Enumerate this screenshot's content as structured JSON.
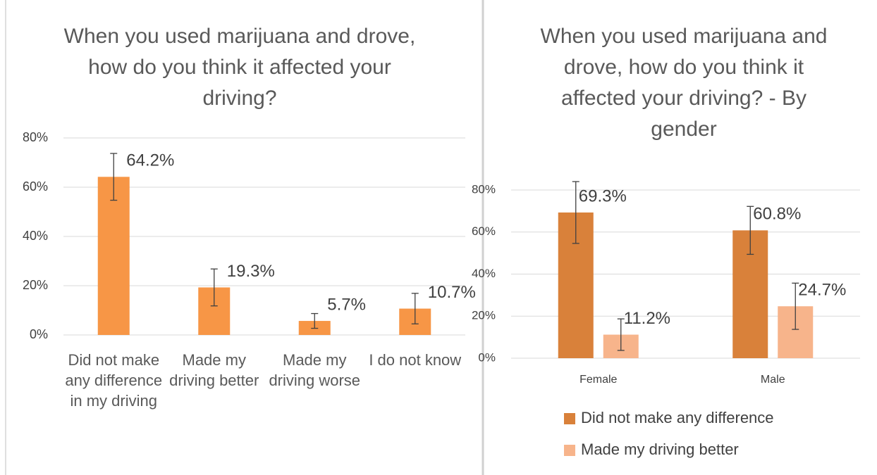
{
  "chart_data": [
    {
      "type": "bar",
      "title": "When you used marijuana and drove, how do you think it affected your driving?",
      "categories": [
        "Did not make any difference in my driving",
        "Made my driving better",
        "Made my driving worse",
        "I do not know"
      ],
      "series": [
        {
          "color": "#f79646",
          "values": [
            64.2,
            19.3,
            5.7,
            10.7
          ],
          "value_labels": [
            "64.2%",
            "19.3%",
            "5.7%",
            "10.7%"
          ],
          "errors": [
            9.5,
            7.5,
            3,
            6.2
          ]
        }
      ],
      "ylim": [
        0,
        80
      ],
      "yticks": [
        {
          "value": 0,
          "label": "0%"
        },
        {
          "value": 20,
          "label": "20%"
        },
        {
          "value": 40,
          "label": "40%"
        },
        {
          "value": 60,
          "label": "60%"
        },
        {
          "value": 80,
          "label": "80%"
        }
      ],
      "grid": true
    },
    {
      "type": "bar",
      "title": "When you used marijuana and drove, how do you think it affected your driving? - By gender",
      "categories": [
        "Female",
        "Male"
      ],
      "series": [
        {
          "name": "Did not make any difference",
          "color": "#d9813a",
          "values": [
            69.3,
            60.8
          ],
          "value_labels": [
            "69.3%",
            "60.8%"
          ],
          "errors": [
            14.7,
            11.4
          ]
        },
        {
          "name": "Made my driving better",
          "color": "#f7b48b",
          "values": [
            11.2,
            24.7
          ],
          "value_labels": [
            "11.2%",
            "24.7%"
          ],
          "errors": [
            7.5,
            11
          ]
        }
      ],
      "ylim": [
        0,
        80
      ],
      "yticks": [
        {
          "value": 0,
          "label": "0%"
        },
        {
          "value": 20,
          "label": "20%"
        },
        {
          "value": 40,
          "label": "40%"
        },
        {
          "value": 60,
          "label": "60%"
        },
        {
          "value": 80,
          "label": "80%"
        }
      ],
      "grid": true,
      "legend": "bottom"
    }
  ]
}
